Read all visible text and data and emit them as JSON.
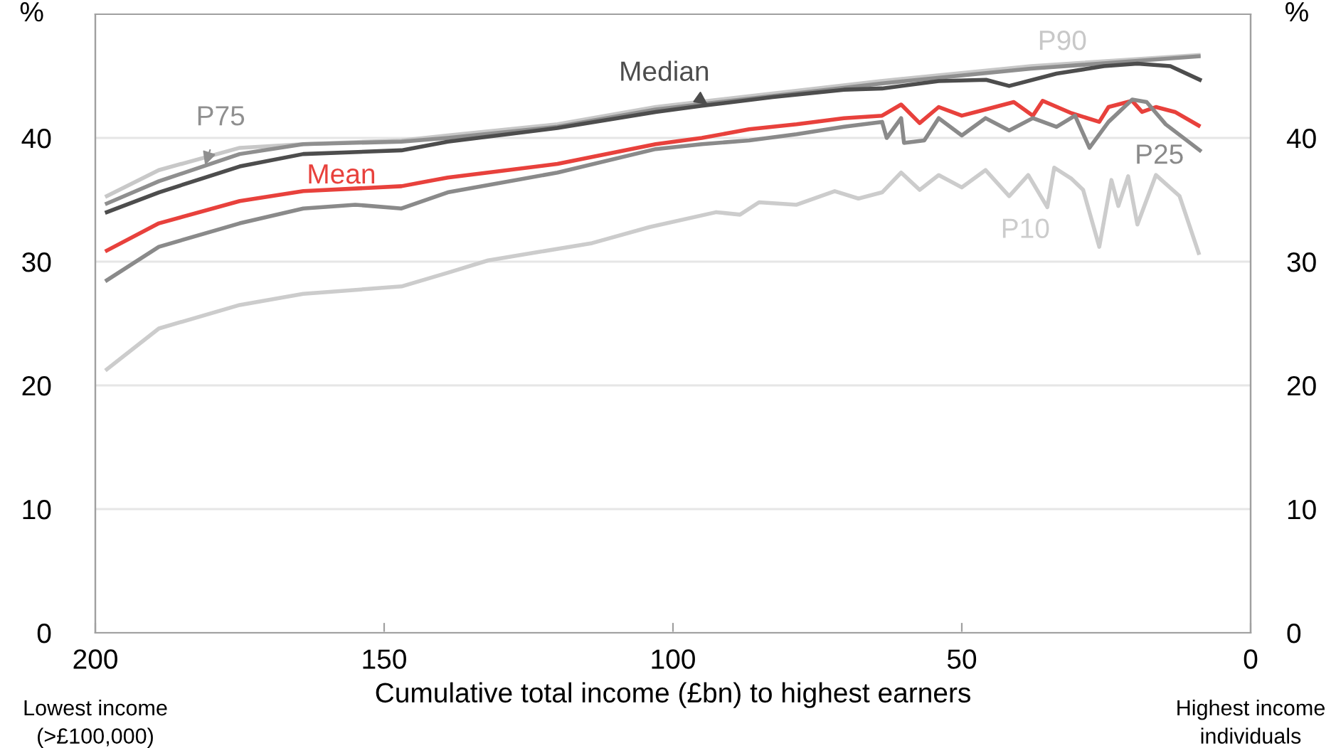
{
  "chart_data": {
    "type": "line",
    "xlabel": "Cumulative total income (£bn) to highest earners",
    "ylabel": "%",
    "y2label": "%",
    "xlim": [
      200,
      0
    ],
    "xticks": [
      200,
      150,
      100,
      50,
      0
    ],
    "ylim": [
      0,
      50
    ],
    "yticks": [
      0,
      10,
      20,
      30,
      40
    ],
    "y2lim": [
      0,
      50
    ],
    "y2ticks": [
      0,
      10,
      20,
      30,
      40
    ],
    "grid": "y",
    "legend": false,
    "marker": "none",
    "line_style": "solid",
    "annotations": [
      "Lowest income (>£100,000)",
      "Highest income individuals"
    ],
    "series": [
      {
        "name": "P90",
        "color": "#c8c8c8",
        "x": [
          198,
          189,
          175,
          164,
          147,
          139,
          120,
          103,
          64,
          38,
          9
        ],
        "values": [
          35.3,
          37.4,
          39.2,
          39.5,
          39.8,
          40.2,
          41.1,
          42.5,
          44.6,
          45.8,
          46.7
        ]
      },
      {
        "name": "P75",
        "color": "#8f8f8f",
        "x": [
          198,
          189,
          175,
          164,
          147,
          139,
          120,
          103,
          64,
          38,
          9
        ],
        "values": [
          34.7,
          36.5,
          38.7,
          39.5,
          39.7,
          40.0,
          40.9,
          42.3,
          44.4,
          45.6,
          46.6
        ]
      },
      {
        "name": "Median",
        "color": "#4d4d4d",
        "x": [
          198,
          189,
          175,
          164,
          147,
          139,
          120,
          103,
          95,
          82.7,
          70.4,
          63.8,
          54,
          45.8,
          41.8,
          33.6,
          25.4,
          19.6,
          13.9,
          8.8
        ],
        "values": [
          34.0,
          35.6,
          37.7,
          38.7,
          39.0,
          39.7,
          40.8,
          42.1,
          42.6,
          43.3,
          43.9,
          44.0,
          44.6,
          44.7,
          44.2,
          45.2,
          45.8,
          46.0,
          45.8,
          44.7
        ]
      },
      {
        "name": "Mean",
        "color": "#e8413c",
        "x": [
          198,
          189,
          175,
          164,
          147,
          139,
          120,
          103,
          95,
          86.8,
          78.6,
          70.4,
          63.8,
          60.5,
          57.3,
          54,
          50,
          45.9,
          41,
          37.7,
          36,
          31,
          26.2,
          24.6,
          20.5,
          18.8,
          16.4,
          13.1,
          9
        ],
        "values": [
          30.9,
          33.1,
          34.9,
          35.7,
          36.1,
          36.8,
          37.9,
          39.5,
          40.0,
          40.7,
          41.1,
          41.6,
          41.8,
          42.7,
          41.2,
          42.5,
          41.8,
          42.3,
          42.9,
          41.8,
          43.0,
          42.0,
          41.3,
          42.5,
          43.0,
          42.1,
          42.5,
          42.1,
          41.0
        ]
      },
      {
        "name": "P25",
        "color": "#8a8a8a",
        "x": [
          198,
          189,
          175,
          164,
          155,
          147,
          139,
          120,
          103,
          95,
          86.8,
          78.6,
          70.4,
          63.8,
          63,
          60.5,
          60,
          56.5,
          54,
          50,
          45.9,
          41.8,
          37.7,
          33.6,
          30.4,
          27.9,
          24.6,
          20.5,
          18,
          14.7,
          8.8
        ],
        "values": [
          28.5,
          31.2,
          33.1,
          34.3,
          34.6,
          34.3,
          35.6,
          37.2,
          39.1,
          39.5,
          39.8,
          40.3,
          40.9,
          41.3,
          40.0,
          41.6,
          39.6,
          39.8,
          41.6,
          40.2,
          41.6,
          40.6,
          41.6,
          40.9,
          41.8,
          39.2,
          41.3,
          43.1,
          42.9,
          41.1,
          39.0
        ]
      },
      {
        "name": "P10",
        "color": "#cccccc",
        "x": [
          198,
          189,
          175,
          164,
          147,
          139,
          132,
          123,
          114,
          104,
          92.5,
          88.4,
          85.1,
          78.6,
          72,
          67.9,
          63.8,
          60.5,
          57.3,
          54,
          50,
          45.9,
          41.8,
          38.5,
          35.2,
          34,
          31,
          29,
          26.2,
          24.1,
          22.9,
          21.2,
          19.6,
          16.4,
          12.3,
          9
        ],
        "values": [
          21.3,
          24.6,
          26.5,
          27.4,
          28.0,
          29.1,
          30.1,
          30.8,
          31.5,
          32.8,
          34.0,
          33.8,
          34.8,
          34.6,
          35.7,
          35.1,
          35.6,
          37.2,
          35.8,
          37.0,
          36.0,
          37.4,
          35.3,
          37.0,
          34.4,
          37.6,
          36.7,
          35.8,
          31.2,
          36.6,
          34.5,
          36.9,
          33.0,
          37.0,
          35.3,
          30.7
        ]
      }
    ]
  }
}
